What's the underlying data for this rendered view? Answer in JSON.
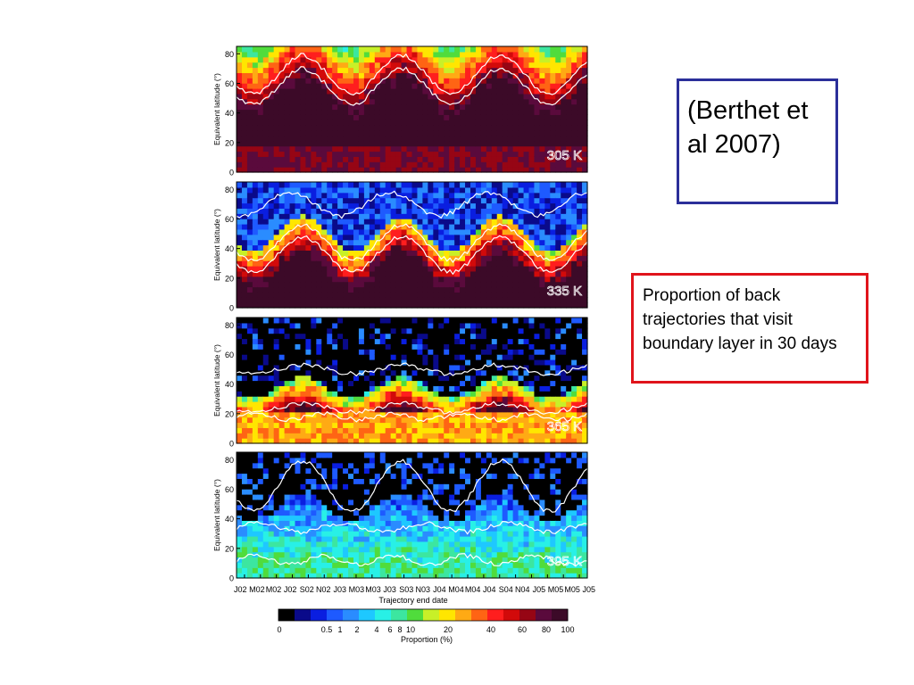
{
  "citation": "(Berthet et al  2007)",
  "caption": "Proportion of back trajectories that visit boundary layer in 30 days",
  "chart_data": {
    "type": "heatmap",
    "shared_x": {
      "label": "Trajectory end date",
      "tick_labels": [
        "J02",
        "M02",
        "M02",
        "J02",
        "S02",
        "N02",
        "J03",
        "M03",
        "M03",
        "J03",
        "S03",
        "N03",
        "J04",
        "M04",
        "M04",
        "J04",
        "S04",
        "N04",
        "J05",
        "M05",
        "M05",
        "J05"
      ]
    },
    "panels": [
      {
        "ylabel": "Equivalent latitude (°)",
        "yticks": [
          0,
          20,
          40,
          60,
          80
        ],
        "ylim": [
          0,
          85
        ],
        "level": "305 K"
      },
      {
        "ylabel": "Equivalent latitude (°)",
        "yticks": [
          0,
          20,
          40,
          60,
          80
        ],
        "ylim": [
          0,
          85
        ],
        "level": "335 K"
      },
      {
        "ylabel": "Equivalent latitude (°)",
        "yticks": [
          0,
          20,
          40,
          60,
          80
        ],
        "ylim": [
          0,
          85
        ],
        "level": "365 K"
      },
      {
        "ylabel": "Equivalent latitude (°)",
        "yticks": [
          0,
          20,
          40,
          60,
          80
        ],
        "ylim": [
          0,
          85
        ],
        "level": "395 K"
      }
    ],
    "colorbar": {
      "label": "Proportion (%)",
      "tick_labels": [
        "0",
        "0.5",
        "1",
        "2",
        "4",
        "6",
        "8",
        "10",
        "20",
        "40",
        "60",
        "80",
        "100"
      ],
      "colors": [
        "#000000",
        "#0a0a8a",
        "#0a1ee0",
        "#1e5aff",
        "#2a8cff",
        "#1ec8ff",
        "#28f0e6",
        "#3ce6a0",
        "#50dc3c",
        "#c8f028",
        "#ffe600",
        "#ffaa14",
        "#ff6414",
        "#ff1e1e",
        "#d20a0a",
        "#960514",
        "#5a0a3c",
        "#3c0a28"
      ]
    }
  }
}
